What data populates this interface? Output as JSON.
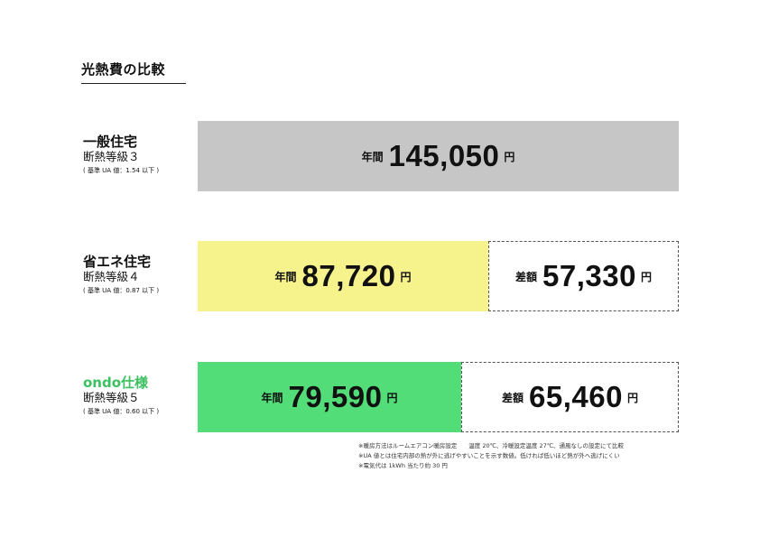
{
  "title": "光熱費の比較",
  "colors": {
    "standard": "#c6c6c6",
    "energy_saving": "#f6f28c",
    "ondo": "#52dd78",
    "ondo_label": "#3cc060"
  },
  "labels": {
    "annual": "年間",
    "difference": "差額",
    "yen": "円"
  },
  "rows": [
    {
      "name": "一般住宅",
      "grade": "断熱等級３",
      "ua": "( 基準 UA 値：1.54 以下 )",
      "annual_cost": "145,050",
      "difference": ""
    },
    {
      "name": "省エネ住宅",
      "grade": "断熱等級４",
      "ua": "( 基準 UA 値：0.87 以下 )",
      "annual_cost": "87,720",
      "difference": "57,330"
    },
    {
      "name": "ondo仕様",
      "grade": "断熱等級５",
      "ua": "( 基準 UA 値：0.60 以下 )",
      "annual_cost": "79,590",
      "difference": "65,460"
    }
  ],
  "notes": [
    "※暖房方法はルームエアコン暖房設定　　温度 20℃、冷暖設定温度 27℃、通風なしの設定にて比較",
    "※UA 値とは住宅内部の熱が外に逃げやすいことを示す数値。低ければ低いほど熱が外へ逃げにくい",
    "※電気代は 1kWh 当たり約 30 円"
  ],
  "chart_data": {
    "type": "bar",
    "orientation": "horizontal",
    "stacked": true,
    "categories": [
      "一般住宅",
      "省エネ住宅",
      "ondo仕様"
    ],
    "series": [
      {
        "values": [
          145050,
          87720,
          79590
        ]
      },
      {
        "values": [
          0,
          57330,
          65460
        ]
      }
    ],
    "xlim": [
      0,
      145050
    ],
    "title": "光熱費の比較",
    "grid": false,
    "legend": "none"
  }
}
